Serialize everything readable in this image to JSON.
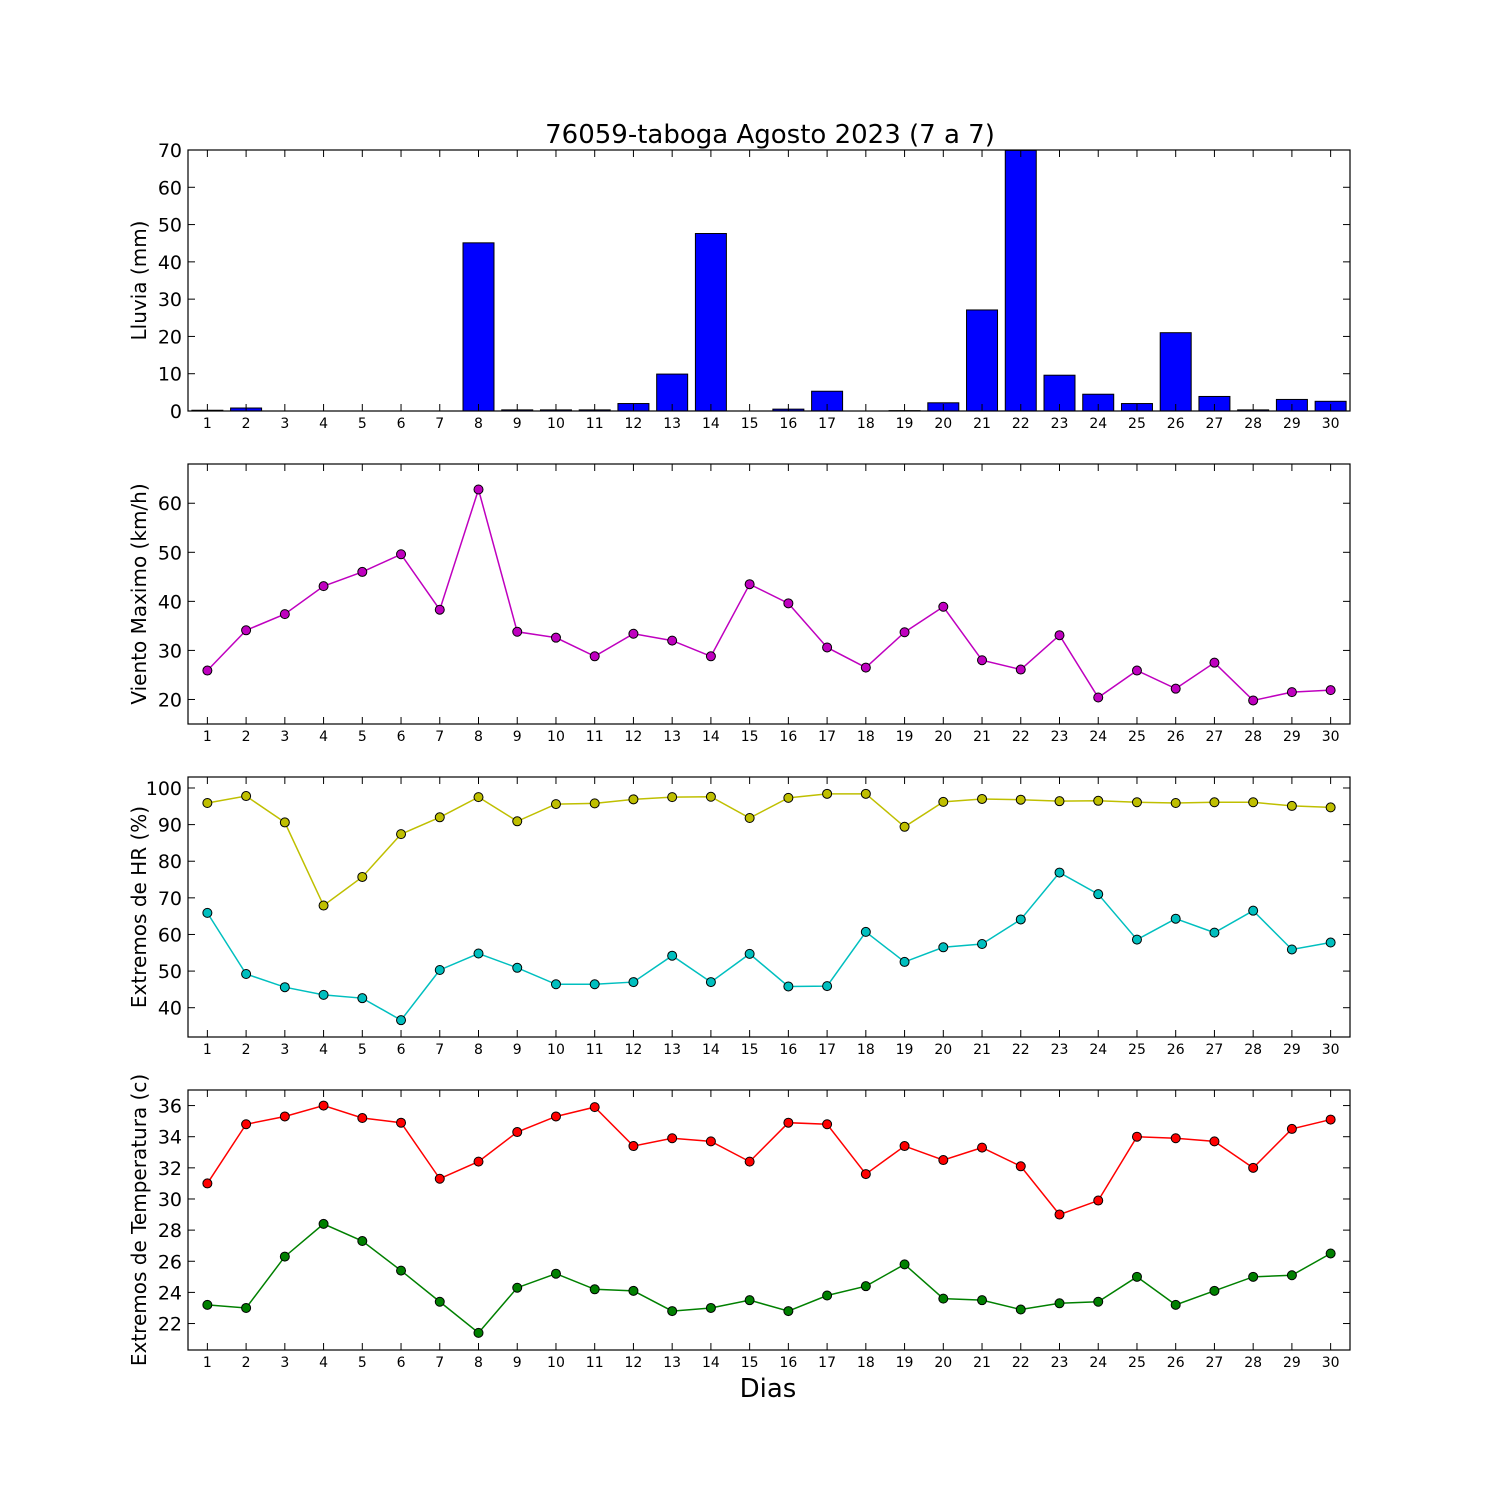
{
  "figure": {
    "title": "76059-taboga Agosto 2023  (7 a 7)",
    "xlabel": "Dias"
  },
  "chart_data": [
    {
      "type": "bar",
      "title": "76059-taboga Agosto 2023  (7 a 7)",
      "ylabel": "Lluvia (mm)",
      "xlabel": "",
      "categories": [
        "1",
        "2",
        "3",
        "4",
        "5",
        "6",
        "7",
        "8",
        "9",
        "10",
        "11",
        "12",
        "13",
        "14",
        "15",
        "16",
        "17",
        "18",
        "19",
        "20",
        "21",
        "22",
        "23",
        "24",
        "25",
        "26",
        "27",
        "28",
        "29",
        "30"
      ],
      "series": [
        {
          "color": "#0000ff",
          "values": [
            0.2,
            0.8,
            0,
            0,
            0,
            0,
            0,
            45.1,
            0.3,
            0.3,
            0.3,
            2.0,
            9.9,
            47.6,
            0,
            0.5,
            5.3,
            0,
            0.1,
            2.2,
            27.1,
            69.9,
            9.6,
            4.5,
            2.0,
            21.0,
            3.9,
            0.3,
            3.1,
            2.6
          ]
        }
      ],
      "ylim": [
        0,
        70
      ],
      "yticks": [
        0,
        10,
        20,
        30,
        40,
        50,
        60,
        70
      ],
      "grid": false
    },
    {
      "type": "line",
      "ylabel": "Viento Maximo (km/h)",
      "xlabel": "",
      "categories": [
        "1",
        "2",
        "3",
        "4",
        "5",
        "6",
        "7",
        "8",
        "9",
        "10",
        "11",
        "12",
        "13",
        "14",
        "15",
        "16",
        "17",
        "18",
        "19",
        "20",
        "21",
        "22",
        "23",
        "24",
        "25",
        "26",
        "27",
        "28",
        "29",
        "30"
      ],
      "series": [
        {
          "color": "#bf00bf",
          "values": [
            25.9,
            34.1,
            37.4,
            43.1,
            46.0,
            49.6,
            38.3,
            62.8,
            33.8,
            32.6,
            28.8,
            33.4,
            32.0,
            28.8,
            43.5,
            39.6,
            30.6,
            26.5,
            33.7,
            38.9,
            28.0,
            26.1,
            33.1,
            20.4,
            25.9,
            22.2,
            27.5,
            19.8,
            21.5,
            21.9
          ]
        }
      ],
      "ylim": [
        15,
        68
      ],
      "yticks": [
        20,
        30,
        40,
        50,
        60
      ],
      "grid": false
    },
    {
      "type": "line",
      "ylabel": "Extremos de HR (%)",
      "xlabel": "",
      "categories": [
        "1",
        "2",
        "3",
        "4",
        "5",
        "6",
        "7",
        "8",
        "9",
        "10",
        "11",
        "12",
        "13",
        "14",
        "15",
        "16",
        "17",
        "18",
        "19",
        "20",
        "21",
        "22",
        "23",
        "24",
        "25",
        "26",
        "27",
        "28",
        "29",
        "30"
      ],
      "series": [
        {
          "color": "#bfbf00",
          "values": [
            95.9,
            97.8,
            90.6,
            67.9,
            75.7,
            87.4,
            92.0,
            97.5,
            90.9,
            95.6,
            95.8,
            96.9,
            97.5,
            97.6,
            91.8,
            97.3,
            98.4,
            98.4,
            89.4,
            96.2,
            97.0,
            96.8,
            96.4,
            96.5,
            96.1,
            95.9,
            96.1,
            96.1,
            95.1,
            94.7
          ]
        },
        {
          "color": "#00bfbf",
          "values": [
            65.9,
            49.2,
            45.6,
            43.5,
            42.6,
            36.6,
            50.3,
            54.8,
            50.9,
            46.4,
            46.4,
            47.0,
            54.2,
            47.0,
            54.7,
            45.8,
            45.9,
            60.7,
            52.5,
            56.5,
            57.4,
            64.1,
            76.9,
            71.0,
            58.6,
            64.3,
            60.5,
            66.5,
            55.9,
            57.8
          ]
        }
      ],
      "ylim": [
        32,
        103
      ],
      "yticks": [
        40,
        50,
        60,
        70,
        80,
        90,
        100
      ],
      "grid": false
    },
    {
      "type": "line",
      "ylabel": "Extremos de Temperatura (c)",
      "xlabel": "Dias",
      "categories": [
        "1",
        "2",
        "3",
        "4",
        "5",
        "6",
        "7",
        "8",
        "9",
        "10",
        "11",
        "12",
        "13",
        "14",
        "15",
        "16",
        "17",
        "18",
        "19",
        "20",
        "21",
        "22",
        "23",
        "24",
        "25",
        "26",
        "27",
        "28",
        "29",
        "30"
      ],
      "series": [
        {
          "color": "#ff0000",
          "values": [
            31.0,
            34.8,
            35.3,
            36.0,
            35.2,
            34.9,
            31.3,
            32.4,
            34.3,
            35.3,
            35.9,
            33.4,
            33.9,
            33.7,
            32.4,
            34.9,
            34.8,
            31.6,
            33.4,
            32.5,
            33.3,
            32.1,
            29.0,
            29.9,
            34.0,
            33.9,
            33.7,
            32.0,
            34.5,
            35.1
          ]
        },
        {
          "color": "#008000",
          "values": [
            23.2,
            23.0,
            26.3,
            28.4,
            27.3,
            25.4,
            23.4,
            21.4,
            24.3,
            25.2,
            24.2,
            24.1,
            22.8,
            23.0,
            23.5,
            22.8,
            23.8,
            24.4,
            25.8,
            23.6,
            23.5,
            22.9,
            23.3,
            23.4,
            25.0,
            23.2,
            24.1,
            25.0,
            25.1,
            26.5
          ]
        }
      ],
      "ylim": [
        20.3,
        37.0
      ],
      "yticks": [
        22,
        24,
        26,
        28,
        30,
        32,
        34,
        36
      ],
      "grid": false
    }
  ]
}
